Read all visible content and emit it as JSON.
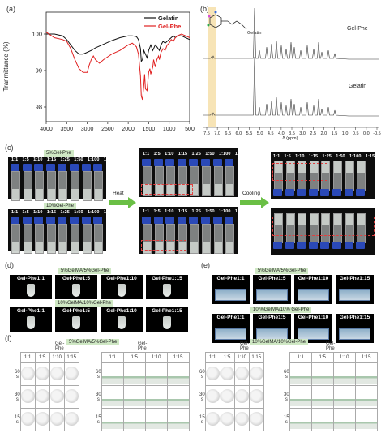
{
  "panels": {
    "a": "(a)",
    "b": "(b)",
    "c": "(c)",
    "d": "(d)",
    "e": "(e)",
    "f": "(f)"
  },
  "ftir": {
    "type": "line",
    "ylabel": "Tranmittance (%)",
    "xticks": [
      "4000",
      "3500",
      "3000",
      "2500",
      "2000",
      "1500",
      "1000",
      "500"
    ],
    "yticks": [
      "98",
      "99",
      "100"
    ],
    "xlim": [
      4000,
      500
    ],
    "ylim": [
      97.6,
      100.6
    ],
    "legend_position": "top-right",
    "series": [
      {
        "name": "Gelatin",
        "color": "#111111",
        "x": [
          4000,
          3800,
          3600,
          3500,
          3400,
          3300,
          3200,
          3100,
          3000,
          2900,
          2800,
          2600,
          2400,
          2200,
          2000,
          1900,
          1800,
          1750,
          1700,
          1680,
          1650,
          1620,
          1580,
          1540,
          1500,
          1450,
          1400,
          1340,
          1300,
          1240,
          1200,
          1150,
          1100,
          1050,
          1000,
          950,
          900,
          850,
          800,
          700,
          600,
          500
        ],
        "y": [
          100.0,
          100.0,
          99.95,
          99.85,
          99.7,
          99.55,
          99.45,
          99.45,
          99.5,
          99.55,
          99.62,
          99.72,
          99.82,
          99.9,
          99.95,
          99.95,
          99.93,
          99.85,
          99.6,
          99.25,
          99.3,
          99.55,
          99.45,
          99.35,
          99.55,
          99.7,
          99.55,
          99.7,
          99.65,
          99.55,
          99.7,
          99.8,
          99.75,
          99.8,
          99.85,
          99.9,
          99.95,
          99.9,
          99.95,
          99.95,
          99.9,
          99.85
        ]
      },
      {
        "name": "Gel-Phe",
        "color": "#e02020",
        "x": [
          4000,
          3800,
          3600,
          3500,
          3400,
          3300,
          3200,
          3100,
          3000,
          2950,
          2900,
          2850,
          2800,
          2700,
          2600,
          2400,
          2200,
          2000,
          1900,
          1800,
          1750,
          1700,
          1680,
          1650,
          1620,
          1600,
          1580,
          1540,
          1500,
          1470,
          1450,
          1400,
          1380,
          1340,
          1300,
          1260,
          1240,
          1200,
          1150,
          1100,
          1050,
          1000,
          950,
          900,
          850,
          800,
          700,
          600,
          500
        ],
        "y": [
          100.05,
          99.9,
          99.85,
          99.8,
          99.6,
          99.3,
          99.05,
          98.95,
          98.95,
          99.15,
          99.3,
          99.4,
          99.3,
          99.2,
          99.3,
          99.45,
          99.55,
          99.7,
          99.75,
          99.65,
          99.45,
          98.85,
          98.3,
          98.2,
          98.6,
          98.9,
          98.5,
          98.45,
          98.95,
          99.05,
          98.9,
          99.1,
          99.3,
          99.1,
          99.3,
          99.4,
          99.3,
          99.5,
          99.6,
          99.55,
          99.7,
          99.75,
          99.85,
          99.8,
          99.9,
          99.95,
          100.0,
          99.95,
          99.9
        ]
      }
    ]
  },
  "nmr": {
    "xlabel": "δ (ppm)",
    "xticks": [
      "7.5",
      "7.0",
      "6.5",
      "6.0",
      "5.5",
      "5.0",
      "4.5",
      "4.0",
      "3.5",
      "3.0",
      "2.5",
      "2.0",
      "1.5",
      "1.0",
      "0.5",
      "0.0",
      "-0.5"
    ],
    "labels": {
      "top": "Gel-Phe",
      "bottom": "Gelatin",
      "struct": "Gelatin"
    }
  },
  "c": {
    "ratios": [
      "1:1",
      "1:5",
      "1:10",
      "1:15",
      "1:25",
      "1:50",
      "1:100",
      "1:150"
    ],
    "tag5": "5%Gel-Phe",
    "tag10": "10%Gel-Phe",
    "heat": "Heat",
    "cooling": "Cooling"
  },
  "d": {
    "tag_top": "5%GelMA/5%Gel-Phe",
    "tag_bottom": "10%GelMA/10%Gel-Phe",
    "tiles_top": [
      "Gel-Phe1:1",
      "Gel-Phe1:5",
      "Gel-Phe1:10",
      "Gel-Phe1:15"
    ],
    "tiles_bottom": [
      "Gel-Phe1:1",
      "Gel-Phe1:5",
      "Gel-Phe1:10",
      "Gel-Phe1:15"
    ]
  },
  "e": {
    "tag_top": "5%GelMA/5%Gel-Phe",
    "tag_bottom": "10 %GelMA/10% Gel-Phe",
    "tiles_top": [
      "Gel-Phe1:1",
      "Gel-Phe1:5",
      "Gel-Phe1:10",
      "Gel-Phe1:15"
    ],
    "tiles_bottom": [
      "Gel-Phe1:1",
      "Gel-Phe1:5",
      "Gel-Phe1:10",
      "Gel-Phe1:15"
    ]
  },
  "f": {
    "tag_left": "5%GelMA/5%Gel-Phe",
    "tag_right": "10%GelMA/10%Gel-Phe",
    "header": "Gel-Phe",
    "cols": [
      "1:1",
      "1:5",
      "1:10",
      "1:15"
    ],
    "rows": [
      "60 s",
      "30 s",
      "15 s"
    ]
  }
}
